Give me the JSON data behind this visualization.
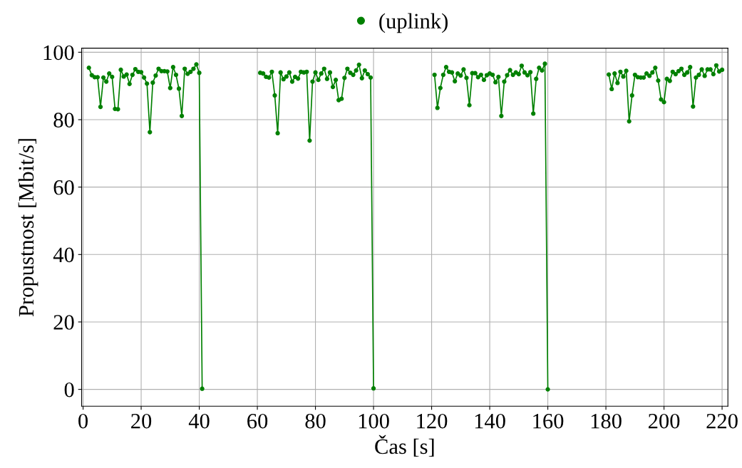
{
  "chart_data": {
    "type": "line",
    "xlabel": "Čas [s]",
    "ylabel": "Propustnost [Mbit/s]",
    "x": [
      2,
      3,
      4,
      5,
      6,
      7,
      8,
      9,
      10,
      11,
      12,
      13,
      14,
      15,
      16,
      17,
      18,
      19,
      20,
      21,
      22,
      23,
      24,
      25,
      26,
      27,
      28,
      29,
      30,
      31,
      32,
      33,
      34,
      35,
      36,
      37,
      38,
      39,
      40,
      41,
      42,
      61,
      62,
      63,
      64,
      65,
      66,
      67,
      68,
      69,
      70,
      71,
      72,
      73,
      74,
      75,
      76,
      77,
      78,
      79,
      80,
      81,
      82,
      83,
      84,
      85,
      86,
      87,
      88,
      89,
      90,
      91,
      92,
      93,
      94,
      95,
      96,
      97,
      98,
      99,
      100,
      101,
      121,
      122,
      123,
      124,
      125,
      126,
      127,
      128,
      129,
      130,
      131,
      132,
      133,
      134,
      135,
      136,
      137,
      138,
      139,
      140,
      141,
      142,
      143,
      144,
      145,
      146,
      147,
      148,
      149,
      150,
      151,
      152,
      153,
      154,
      155,
      156,
      157,
      158,
      159,
      160,
      161,
      181,
      182,
      183,
      184,
      185,
      186,
      187,
      188,
      189,
      190,
      191,
      192,
      193,
      194,
      195,
      196,
      197,
      198,
      199,
      200,
      201,
      202,
      203,
      204,
      205,
      206,
      207,
      208,
      209,
      210,
      211,
      212,
      213,
      214,
      215,
      216,
      217,
      218,
      219,
      220
    ],
    "series": [
      {
        "name": "(uplink)",
        "color": "#008000",
        "values": [
          95.4,
          93.2,
          92.6,
          92.6,
          83.8,
          92.5,
          91.3,
          93.7,
          92.7,
          83.2,
          83.1,
          94.8,
          92.8,
          93.4,
          90.6,
          93.3,
          95.0,
          94.2,
          94.1,
          92.5,
          90.7,
          76.3,
          91.0,
          93.1,
          95.1,
          94.4,
          94.4,
          94.3,
          89.4,
          95.6,
          93.3,
          89.2,
          81.1,
          95.1,
          93.6,
          94.2,
          95.1,
          96.4,
          93.9,
          0.2,
          null,
          93.9,
          93.7,
          92.7,
          92.5,
          94.2,
          87.2,
          76.0,
          94.0,
          92.0,
          92.8,
          94.0,
          91.3,
          92.7,
          92.2,
          94.2,
          94.0,
          94.2,
          73.8,
          91.3,
          94.0,
          91.8,
          93.7,
          95.1,
          92.1,
          94.0,
          89.7,
          91.8,
          85.8,
          86.2,
          92.4,
          95.1,
          93.9,
          93.3,
          94.6,
          96.3,
          92.3,
          94.6,
          93.5,
          92.5,
          0.3,
          null,
          93.3,
          83.5,
          89.4,
          93.3,
          95.6,
          94.2,
          94.0,
          91.4,
          93.7,
          93.1,
          94.9,
          92.4,
          84.3,
          93.8,
          93.8,
          92.6,
          93.3,
          91.8,
          93.2,
          93.7,
          93.3,
          91.1,
          92.7,
          81.1,
          91.3,
          93.2,
          94.7,
          93.3,
          94.0,
          93.5,
          96.0,
          94.0,
          93.2,
          94.1,
          81.8,
          92.1,
          95.4,
          94.6,
          96.6,
          0.0,
          null,
          93.4,
          89.1,
          93.7,
          90.9,
          94.2,
          92.8,
          94.5,
          79.5,
          87.2,
          93.3,
          92.6,
          92.5,
          92.5,
          93.7,
          93.0,
          94.0,
          95.4,
          91.6,
          86.0,
          85.2,
          92.1,
          91.5,
          94.2,
          93.5,
          94.4,
          95.1,
          93.3,
          94.0,
          95.6,
          83.9,
          92.5,
          93.3,
          94.9,
          93.0,
          94.9,
          94.9,
          93.5,
          96.1,
          94.3,
          94.8
        ]
      }
    ],
    "xlim": [
      -0.5,
      222
    ],
    "ylim": [
      -5,
      101.2
    ],
    "xticks": [
      0,
      20,
      40,
      60,
      80,
      100,
      120,
      140,
      160,
      180,
      200,
      220
    ],
    "yticks": [
      0,
      20,
      40,
      60,
      80,
      100
    ],
    "grid": true,
    "legend": "top",
    "marker": "circle",
    "line_style": "solid"
  }
}
